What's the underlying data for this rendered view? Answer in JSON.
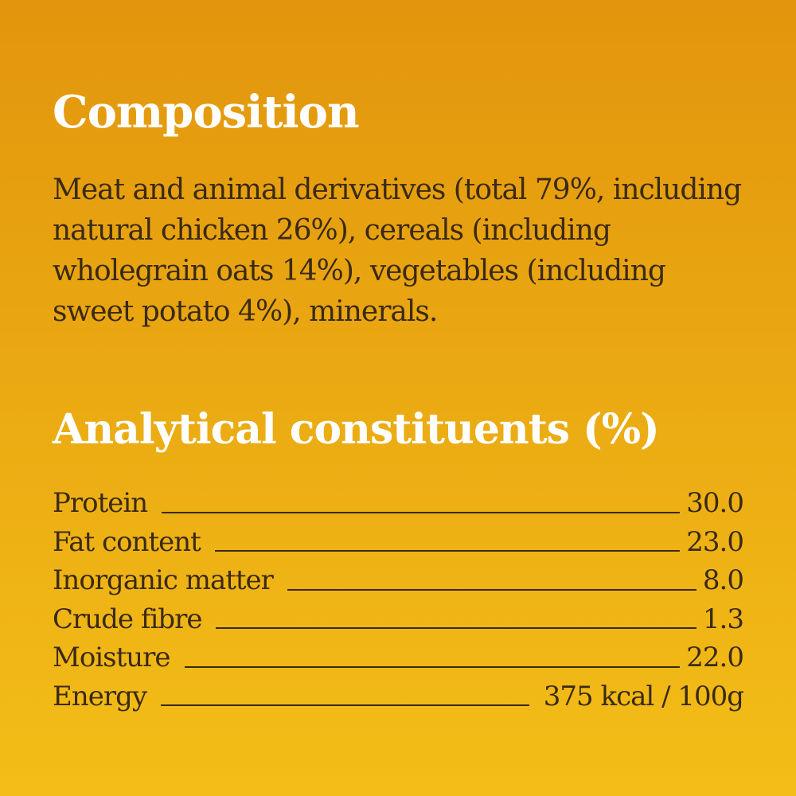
{
  "composition": {
    "heading": "Composition",
    "text": "Meat and animal derivatives (total 79%, including natural chicken 26%), cereals (including wholegrain oats 14%), vegetables (including sweet potato 4%), minerals."
  },
  "analytical": {
    "heading": "Analytical constituents (%)",
    "rows": [
      {
        "label": "Protein",
        "value": "30.0"
      },
      {
        "label": "Fat content",
        "value": "23.0"
      },
      {
        "label": "Inorganic matter",
        "value": "8.0"
      },
      {
        "label": "Crude fibre",
        "value": "1.3"
      },
      {
        "label": "Moisture",
        "value": "22.0"
      },
      {
        "label": "Energy",
        "value": "375 kcal / 100g"
      }
    ]
  },
  "colors": {
    "background_top": "#e2950c",
    "background_bottom": "#f3be17",
    "heading_text": "#ffffff",
    "body_text": "#3a2a16"
  }
}
